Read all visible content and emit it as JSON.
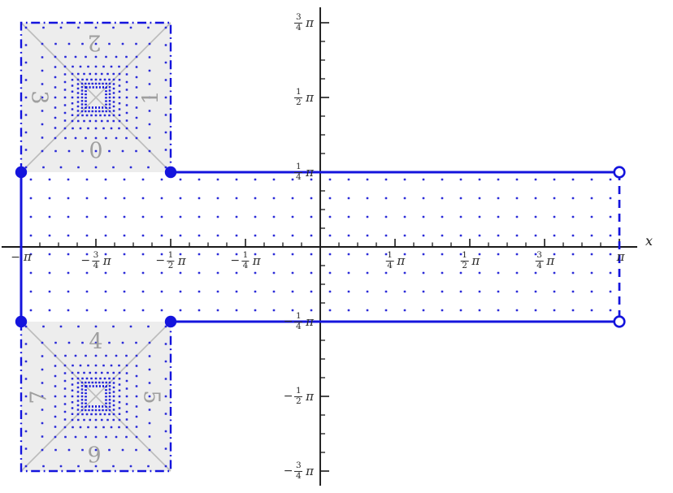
{
  "figure": {
    "description": "Region plot in the complex plane: horizontal strip |Im| <= pi/4 with two subdivided squares over [-pi,-pi/2]",
    "x_axis_label": "x"
  },
  "colors": {
    "blue": "#1414dd",
    "dot_blue": "#2a2ad8",
    "axis_black": "#1a1a1a",
    "square_fill": "#ededed",
    "gray_line": "#bbbbbb",
    "sector_gray": "#9f9f9f",
    "label_dark": "#2b2b2b"
  },
  "axis": {
    "x_label": "x",
    "x_ticks": [
      {
        "sign": "−",
        "num": null,
        "den": null,
        "symbol": "π",
        "quarters": -4
      },
      {
        "sign": "−",
        "num": "3",
        "den": "4",
        "symbol": "π",
        "quarters": -3
      },
      {
        "sign": "−",
        "num": "1",
        "den": "2",
        "symbol": "π",
        "quarters": -2
      },
      {
        "sign": "−",
        "num": "1",
        "den": "4",
        "symbol": "π",
        "quarters": -1
      },
      {
        "sign": "",
        "num": "1",
        "den": "4",
        "symbol": "π",
        "quarters": 1
      },
      {
        "sign": "",
        "num": "1",
        "den": "2",
        "symbol": "π",
        "quarters": 2
      },
      {
        "sign": "",
        "num": "3",
        "den": "4",
        "symbol": "π",
        "quarters": 3
      },
      {
        "sign": "",
        "num": null,
        "den": null,
        "symbol": "π",
        "quarters": 4
      }
    ],
    "y_ticks": [
      {
        "sign": "",
        "num": "3",
        "den": "4",
        "symbol": "π",
        "quarters": 3
      },
      {
        "sign": "",
        "num": "1",
        "den": "2",
        "symbol": "π",
        "quarters": 2
      },
      {
        "sign": "",
        "num": "1",
        "den": "4",
        "symbol": "π",
        "quarters": 1
      },
      {
        "sign": "−",
        "num": "1",
        "den": "4",
        "symbol": "π",
        "quarters": -1
      },
      {
        "sign": "−",
        "num": "1",
        "den": "2",
        "symbol": "π",
        "quarters": -2
      },
      {
        "sign": "−",
        "num": "3",
        "den": "4",
        "symbol": "π",
        "quarters": -3
      }
    ]
  },
  "sectors": [
    "0",
    "1",
    "2",
    "3",
    "4",
    "5",
    "6",
    "7"
  ],
  "chart_data": {
    "type": "area",
    "title": "",
    "xlabel": "x",
    "ylabel": "",
    "xlim_pi": [
      -1.07,
      1.06
    ],
    "ylim_pi": [
      -0.8,
      0.8
    ],
    "x_tick_values_pi": [
      -1,
      -0.75,
      -0.5,
      -0.25,
      0.25,
      0.5,
      0.75,
      1
    ],
    "y_tick_values_pi": [
      0.75,
      0.5,
      0.25,
      -0.25,
      -0.5,
      -0.75
    ],
    "minor_tick_step_pi": 0.0625,
    "grid": false,
    "regions": [
      {
        "name": "horizontal-strip",
        "x_range_pi": [
          -1,
          1
        ],
        "y_range_pi": [
          -0.25,
          0.25
        ],
        "fill": "uniform blue dot grid",
        "boundary": {
          "left_edge_x_-pi": "solid blue (included), filled endpoints",
          "right_edge_x_pi": "dashed blue (excluded), open endpoints",
          "top_edge_y_quarter_pi": "solid blue from -pi/2 to pi",
          "bottom_edge_y_minus_quarter_pi": "solid blue from -pi/2 to pi"
        }
      },
      {
        "name": "upper-left-square",
        "x_range_pi": [
          -1,
          -0.5
        ],
        "y_range_pi": [
          0.25,
          0.75
        ],
        "fill": "light gray, concentric blue dotted square rings, gray corner-to-corner diagonals, small dotted center square",
        "border": "blue dash-dot on left/top/right, open along bottom",
        "sector_labels": [
          "0 bottom",
          "1 right",
          "2 top",
          "3 left"
        ]
      },
      {
        "name": "lower-left-square",
        "x_range_pi": [
          -1,
          -0.5
        ],
        "y_range_pi": [
          -0.75,
          -0.25
        ],
        "fill": "light gray, concentric blue dotted square rings, gray corner-to-corner diagonals, small dotted center square",
        "border": "blue dash-dot on left/bottom/right, open along top",
        "sector_labels": [
          "4 top",
          "5 right",
          "6 bottom",
          "7 left"
        ]
      }
    ],
    "points": [
      {
        "x_pi": -1,
        "y_pi": 0.25,
        "style": "filled"
      },
      {
        "x_pi": -0.5,
        "y_pi": 0.25,
        "style": "filled"
      },
      {
        "x_pi": -1,
        "y_pi": -0.25,
        "style": "filled"
      },
      {
        "x_pi": -0.5,
        "y_pi": -0.25,
        "style": "filled"
      },
      {
        "x_pi": 1,
        "y_pi": 0.25,
        "style": "open"
      },
      {
        "x_pi": 1,
        "y_pi": -0.25,
        "style": "open"
      }
    ]
  }
}
